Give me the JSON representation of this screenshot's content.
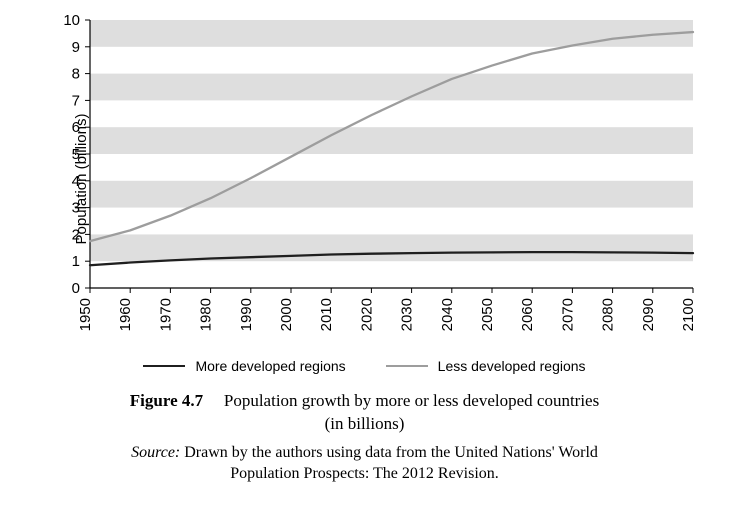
{
  "chart": {
    "type": "line",
    "background_color": "#ffffff",
    "band_color": "#dedede",
    "axis_color": "#000000",
    "tick_font_family": "Arial, Helvetica, sans-serif",
    "tick_fontsize": 15,
    "tick_color": "#000000",
    "ylabel": "Population (billions)",
    "ylabel_fontsize": 15,
    "x": {
      "min": 1950,
      "max": 2100,
      "tick_step": 10,
      "ticks": [
        1950,
        1960,
        1970,
        1980,
        1990,
        2000,
        2010,
        2020,
        2030,
        2040,
        2050,
        2060,
        2070,
        2080,
        2090,
        2100
      ],
      "rotate_labels_deg": -90
    },
    "y": {
      "min": 0,
      "max": 10,
      "tick_step": 1,
      "ticks": [
        0,
        1,
        2,
        3,
        4,
        5,
        6,
        7,
        8,
        9,
        10
      ]
    },
    "grid": {
      "show": false
    },
    "series": [
      {
        "name": "More developed regions",
        "color": "#1f1f1f",
        "line_width": 2.3,
        "x": [
          1950,
          1960,
          1970,
          1980,
          1990,
          2000,
          2010,
          2020,
          2030,
          2040,
          2050,
          2060,
          2070,
          2080,
          2090,
          2100
        ],
        "y": [
          0.85,
          0.95,
          1.03,
          1.1,
          1.15,
          1.2,
          1.25,
          1.28,
          1.3,
          1.32,
          1.33,
          1.34,
          1.34,
          1.33,
          1.32,
          1.3
        ]
      },
      {
        "name": "Less developed regions",
        "color": "#9d9d9d",
        "line_width": 2.3,
        "x": [
          1950,
          1960,
          1970,
          1980,
          1990,
          2000,
          2010,
          2020,
          2030,
          2040,
          2050,
          2060,
          2070,
          2080,
          2090,
          2100
        ],
        "y": [
          1.75,
          2.15,
          2.7,
          3.35,
          4.1,
          4.9,
          5.7,
          6.45,
          7.15,
          7.8,
          8.3,
          8.75,
          9.05,
          9.3,
          9.45,
          9.55
        ]
      }
    ],
    "legend": {
      "items": [
        {
          "label": "More developed regions",
          "color": "#1f1f1f",
          "line_width": 2.3
        },
        {
          "label": "Less developed regions",
          "color": "#9d9d9d",
          "line_width": 2.3
        }
      ]
    }
  },
  "caption": {
    "label": "Figure 4.7",
    "title_line1": "Population growth by more or less developed countries",
    "title_line2": "(in billions)"
  },
  "source": {
    "label": "Source:",
    "text_line1": "Drawn by the authors using data from the United Nations' World",
    "text_line2": "Population Prospects: The 2012 Revision."
  }
}
